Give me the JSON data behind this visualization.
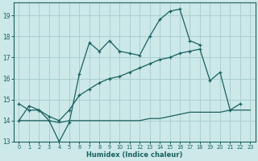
{
  "xlabel": "Humidex (Indice chaleur)",
  "bg_color": "#cce8e8",
  "grid_color": "#aacfcf",
  "line_color": "#1a6060",
  "xlim": [
    -0.5,
    23.5
  ],
  "ylim": [
    13,
    19.6
  ],
  "yticks": [
    13,
    14,
    15,
    16,
    17,
    18,
    19
  ],
  "xticks": [
    0,
    1,
    2,
    3,
    4,
    5,
    6,
    7,
    8,
    9,
    10,
    11,
    12,
    13,
    14,
    15,
    16,
    17,
    18,
    19,
    20,
    21,
    22,
    23
  ],
  "line1_x": [
    0,
    1,
    2,
    3,
    4,
    5,
    6,
    7,
    8,
    9,
    10,
    11,
    12,
    13,
    14,
    15,
    16,
    17,
    18
  ],
  "line1_y": [
    14.0,
    14.7,
    14.5,
    14.0,
    13.0,
    13.9,
    16.2,
    17.7,
    17.3,
    17.8,
    17.3,
    17.2,
    17.1,
    18.0,
    18.8,
    19.2,
    19.3,
    17.8,
    17.6
  ],
  "line2_x": [
    0,
    1,
    2,
    3,
    4,
    5,
    6,
    7,
    8,
    9,
    10,
    11,
    12,
    13,
    14,
    15,
    16,
    17,
    18,
    19,
    20,
    21,
    22
  ],
  "line2_y": [
    14.8,
    14.5,
    14.5,
    14.2,
    14.0,
    14.5,
    15.2,
    15.5,
    15.8,
    16.0,
    16.1,
    16.3,
    16.5,
    16.7,
    16.9,
    17.0,
    17.2,
    17.3,
    17.4,
    15.9,
    16.3,
    14.5,
    14.8
  ],
  "line3_x": [
    0,
    1,
    2,
    3,
    4,
    5,
    6,
    7,
    8,
    9,
    10,
    11,
    12,
    13,
    14,
    15,
    16,
    17,
    18,
    19,
    20,
    21,
    22,
    23
  ],
  "line3_y": [
    14.0,
    14.0,
    14.0,
    14.0,
    13.9,
    14.0,
    14.0,
    14.0,
    14.0,
    14.0,
    14.0,
    14.0,
    14.0,
    14.1,
    14.1,
    14.2,
    14.3,
    14.4,
    14.4,
    14.4,
    14.4,
    14.5,
    14.5,
    14.5
  ]
}
